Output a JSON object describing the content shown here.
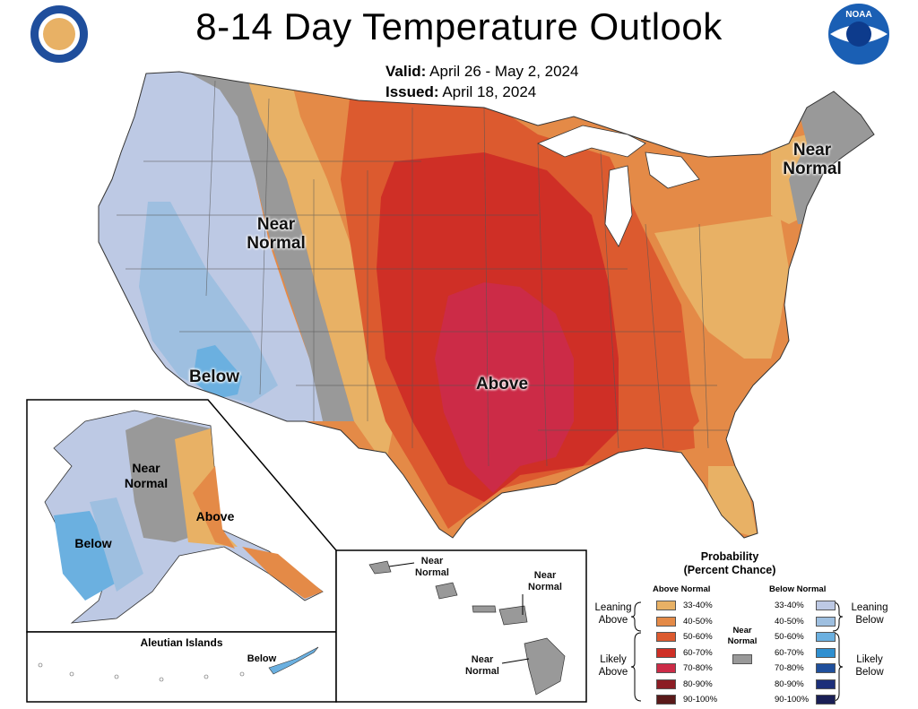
{
  "header": {
    "title": "8-14 Day Temperature Outlook",
    "valid_label": "Valid:",
    "valid_value": "April 26 - May 2, 2024",
    "issued_label": "Issued:",
    "issued_value": "April 18, 2024"
  },
  "logos": {
    "left": "department-of-commerce-seal",
    "right": "noaa-logo",
    "noaa_text": "NOAA"
  },
  "map_labels": {
    "conus_near_normal_west": [
      "Near",
      "Normal"
    ],
    "conus_near_normal_east": [
      "Near",
      "Normal"
    ],
    "conus_below": "Below",
    "conus_above": "Above",
    "alaska_near_normal": [
      "Near",
      "Normal"
    ],
    "alaska_above": "Above",
    "alaska_below": "Below",
    "aleutian_title": "Aleutian Islands",
    "aleutian_below": "Below",
    "hawaii_near_normal_1": [
      "Near",
      "Normal"
    ],
    "hawaii_near_normal_2": [
      "Near",
      "Normal"
    ],
    "hawaii_near_normal_3": [
      "Near",
      "Normal"
    ]
  },
  "legend": {
    "title": [
      "Probability",
      "(Percent Chance)"
    ],
    "above_header": "Above Normal",
    "below_header": "Below Normal",
    "near_normal_label": [
      "Near",
      "Normal"
    ],
    "near_normal_color": "#999999",
    "above_rows": [
      {
        "range": "33-40%",
        "color": "#e8b165"
      },
      {
        "range": "40-50%",
        "color": "#e48a47"
      },
      {
        "range": "50-60%",
        "color": "#dc5a2f"
      },
      {
        "range": "60-70%",
        "color": "#cf2f26"
      },
      {
        "range": "70-80%",
        "color": "#cc2b47"
      },
      {
        "range": "80-90%",
        "color": "#8c1d24"
      },
      {
        "range": "90-100%",
        "color": "#5a1a1a"
      }
    ],
    "below_rows": [
      {
        "range": "33-40%",
        "color": "#bdc9e4"
      },
      {
        "range": "40-50%",
        "color": "#9ebfe0"
      },
      {
        "range": "50-60%",
        "color": "#6bb0e0"
      },
      {
        "range": "60-70%",
        "color": "#2f8fd0"
      },
      {
        "range": "70-80%",
        "color": "#1f4f9c"
      },
      {
        "range": "80-90%",
        "color": "#1c2f7a"
      },
      {
        "range": "90-100%",
        "color": "#1a1f55"
      }
    ],
    "leaning_above": [
      "Leaning",
      "Above"
    ],
    "likely_above": [
      "Likely",
      "Above"
    ],
    "leaning_below": [
      "Leaning",
      "Below"
    ],
    "likely_below": [
      "Likely",
      "Below"
    ]
  }
}
